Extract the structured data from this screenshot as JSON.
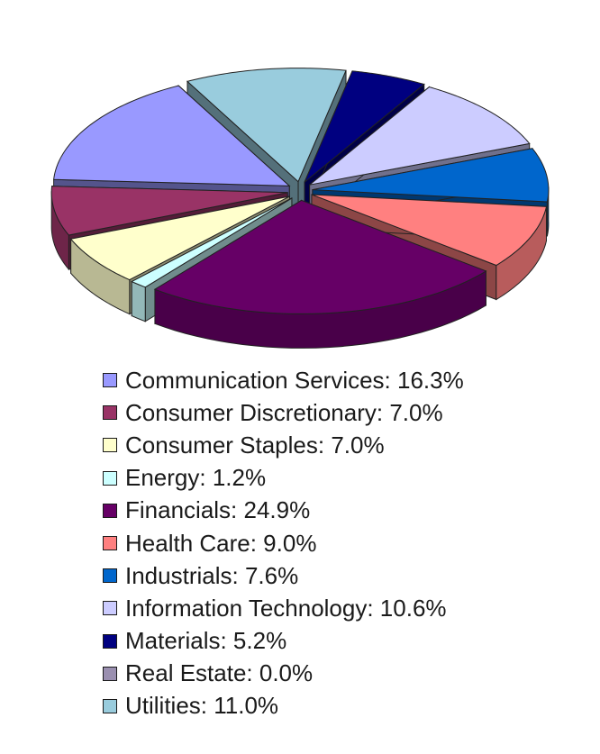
{
  "chart_data": {
    "type": "pie",
    "style": "3d-exploded",
    "title": "",
    "legend_position": "bottom",
    "series": [
      {
        "name": "Communication Services",
        "value": 16.3,
        "label": "Communication Services: 16.3%",
        "color": "#9999ff"
      },
      {
        "name": "Consumer Discretionary",
        "value": 7.0,
        "label": "Consumer Discretionary: 7.0%",
        "color": "#993366"
      },
      {
        "name": "Consumer Staples",
        "value": 7.0,
        "label": "Consumer Staples: 7.0%",
        "color": "#ffffcc"
      },
      {
        "name": "Energy",
        "value": 1.2,
        "label": "Energy: 1.2%",
        "color": "#ccffff"
      },
      {
        "name": "Financials",
        "value": 24.9,
        "label": "Financials: 24.9%",
        "color": "#660066"
      },
      {
        "name": "Health Care",
        "value": 9.0,
        "label": "Health Care: 9.0%",
        "color": "#ff8080"
      },
      {
        "name": "Industrials",
        "value": 7.6,
        "label": "Industrials: 7.6%",
        "color": "#0066cc"
      },
      {
        "name": "Information Technology",
        "value": 10.6,
        "label": "Information Technology: 10.6%",
        "color": "#ccccff"
      },
      {
        "name": "Materials",
        "value": 5.2,
        "label": "Materials: 5.2%",
        "color": "#000080"
      },
      {
        "name": "Real Estate",
        "value": 0.0,
        "label": "Real Estate: 0.0%",
        "color": "#9a8fb0"
      },
      {
        "name": "Utilities",
        "value": 11.0,
        "label": "Utilities: 11.0%",
        "color": "#99ccdd"
      }
    ]
  }
}
